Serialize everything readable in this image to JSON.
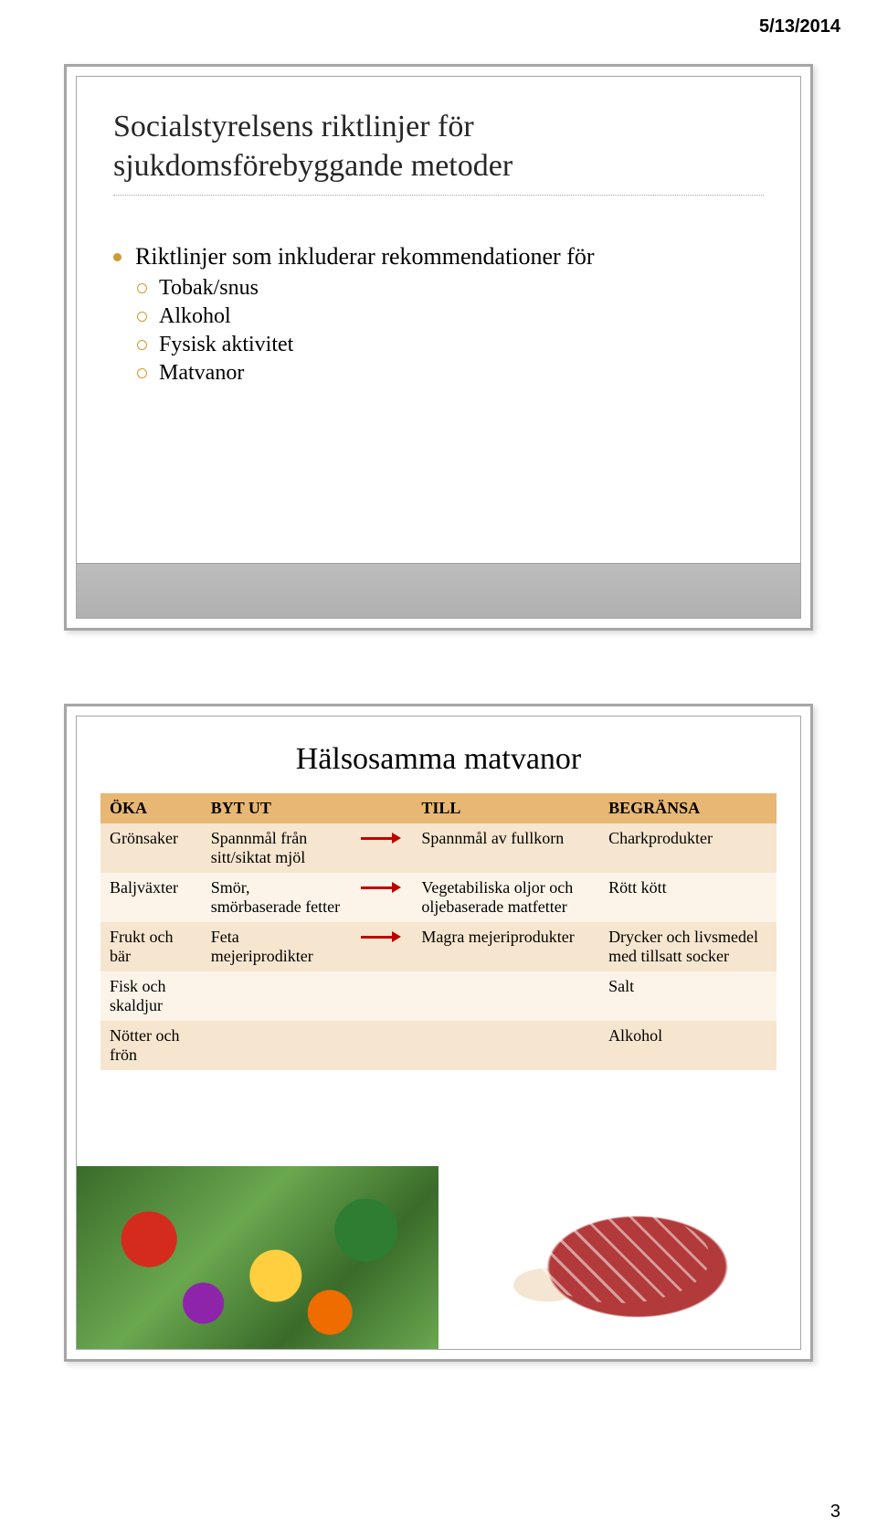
{
  "page": {
    "date": "5/13/2014",
    "number": "3"
  },
  "slide1": {
    "title_line1": "Socialstyrelsens riktlinjer för",
    "title_line2": "sjukdomsförebyggande metoder",
    "lead_bullet": "Riktlinjer som inkluderar rekommendationer för",
    "sub_bullets": [
      "Tobak/snus",
      "Alkohol",
      "Fysisk aktivitet",
      "Matvanor"
    ]
  },
  "slide2": {
    "title": "Hälsosamma matvanor",
    "table": {
      "header_bg": "#e8b774",
      "row_bg_alt": [
        "#f7e6cf",
        "#fcf4e8"
      ],
      "arrow_color": "#c00000",
      "columns": [
        "ÖKA",
        "BYT UT",
        "TILL",
        "BEGRÄNSA"
      ],
      "rows": [
        {
          "oka": "Grönsaker",
          "byt": "Spannmål från sitt/siktat mjöl",
          "arrow": true,
          "till": "Spannmål av fullkorn",
          "begr": "Charkprodukter"
        },
        {
          "oka": "Baljväxter",
          "byt": "Smör, smörbaserade fetter",
          "arrow": true,
          "till": "Vegetabiliska oljor och oljebaserade matfetter",
          "begr": "Rött kött"
        },
        {
          "oka": "Frukt och bär",
          "byt": "Feta mejeriprodikter",
          "arrow": true,
          "till": "Magra mejeriprodukter",
          "begr": "Drycker och livsmedel med tillsatt socker"
        },
        {
          "oka": "Fisk och skaldjur",
          "byt": "",
          "arrow": false,
          "till": "",
          "begr": "Salt"
        },
        {
          "oka": "Nötter och frön",
          "byt": "",
          "arrow": false,
          "till": "",
          "begr": "Alkohol"
        }
      ]
    }
  }
}
